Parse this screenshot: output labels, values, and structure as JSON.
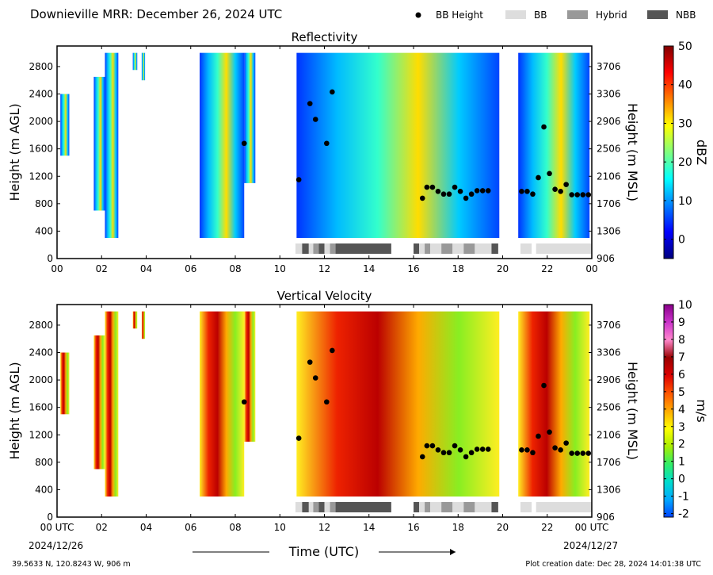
{
  "header": {
    "title": "Downieville MRR:  December 26, 2024 UTC",
    "legend": [
      {
        "label": "BB Height",
        "kind": "dot",
        "color": "#000000"
      },
      {
        "label": "BB",
        "kind": "box",
        "color": "#dddddd"
      },
      {
        "label": "Hybrid",
        "kind": "box",
        "color": "#999999"
      },
      {
        "label": "NBB",
        "kind": "box",
        "color": "#555555"
      }
    ]
  },
  "footer": {
    "location": "39.5633 N, 120.8243 W, 906 m",
    "created": "Plot creation date: Dec 28, 2024 14:01:38 UTC",
    "xlabel": "Time (UTC)",
    "start_date": "2024/12/26",
    "end_date": "2024/12/27"
  },
  "chart_data": [
    {
      "type": "heatmap",
      "title": "Reflectivity",
      "xlabel": "",
      "ylabel": "Height (m AGL)",
      "ylabel_right": "Height (m MSL)",
      "x_ticks": [
        "00",
        "02",
        "04",
        "06",
        "08",
        "10",
        "12",
        "14",
        "16",
        "18",
        "20",
        "22",
        "00"
      ],
      "xlim": [
        0,
        24
      ],
      "ylim": [
        0,
        3100
      ],
      "y_ticks": [
        0,
        400,
        800,
        1200,
        1600,
        2000,
        2400,
        2800
      ],
      "y_right_ticks": [
        "906",
        "1306",
        "1706",
        "2106",
        "2506",
        "2906",
        "3306",
        "3706"
      ],
      "colorbar": {
        "label": "dBZ",
        "range": [
          -5,
          50
        ],
        "ticks": [
          0,
          10,
          20,
          30,
          40,
          50
        ],
        "colormap": [
          "#00007f",
          "#0000ff",
          "#007fff",
          "#00ffff",
          "#7fff7f",
          "#ffff00",
          "#ff7f00",
          "#ff0000",
          "#7f0000"
        ]
      },
      "echo_segments": [
        {
          "start": 0.15,
          "end": 0.55,
          "bottom": 1500,
          "top": 2400
        },
        {
          "start": 1.65,
          "end": 2.15,
          "bottom": 700,
          "top": 2650
        },
        {
          "start": 2.15,
          "end": 2.75,
          "bottom": 300,
          "top": 3000
        },
        {
          "start": 3.4,
          "end": 3.6,
          "bottom": 2750,
          "top": 3000
        },
        {
          "start": 3.8,
          "end": 3.95,
          "bottom": 2600,
          "top": 3000
        },
        {
          "start": 6.4,
          "end": 8.4,
          "bottom": 300,
          "top": 3000
        },
        {
          "start": 8.4,
          "end": 8.9,
          "bottom": 1100,
          "top": 3000
        },
        {
          "start": 10.75,
          "end": 19.85,
          "bottom": 300,
          "top": 3000
        },
        {
          "start": 20.7,
          "end": 23.9,
          "bottom": 300,
          "top": 3000
        }
      ],
      "bb_heights": [
        {
          "time": 10.85,
          "height": 1150
        },
        {
          "time": 11.35,
          "height": 2260
        },
        {
          "time": 11.6,
          "height": 2030
        },
        {
          "time": 12.1,
          "height": 1680
        },
        {
          "time": 12.35,
          "height": 2430
        },
        {
          "time": 8.4,
          "height": 1680
        },
        {
          "time": 16.4,
          "height": 880
        },
        {
          "time": 16.6,
          "height": 1040
        },
        {
          "time": 16.85,
          "height": 1040
        },
        {
          "time": 17.1,
          "height": 980
        },
        {
          "time": 17.35,
          "height": 940
        },
        {
          "time": 17.6,
          "height": 940
        },
        {
          "time": 17.85,
          "height": 1040
        },
        {
          "time": 18.1,
          "height": 980
        },
        {
          "time": 18.35,
          "height": 880
        },
        {
          "time": 18.6,
          "height": 940
        },
        {
          "time": 18.85,
          "height": 990
        },
        {
          "time": 19.1,
          "height": 990
        },
        {
          "time": 19.35,
          "height": 990
        },
        {
          "time": 20.85,
          "height": 980
        },
        {
          "time": 21.1,
          "height": 980
        },
        {
          "time": 21.35,
          "height": 940
        },
        {
          "time": 21.6,
          "height": 1180
        },
        {
          "time": 21.85,
          "height": 1920
        },
        {
          "time": 22.1,
          "height": 1240
        },
        {
          "time": 22.35,
          "height": 1010
        },
        {
          "time": 22.6,
          "height": 980
        },
        {
          "time": 22.85,
          "height": 1080
        },
        {
          "time": 23.1,
          "height": 930
        },
        {
          "time": 23.35,
          "height": 930
        },
        {
          "time": 23.6,
          "height": 930
        },
        {
          "time": 23.85,
          "height": 930
        }
      ],
      "bb_type_bar": [
        {
          "start": 10.7,
          "end": 11.0,
          "type": "BB"
        },
        {
          "start": 11.0,
          "end": 11.3,
          "type": "NBB"
        },
        {
          "start": 11.3,
          "end": 11.5,
          "type": "BB"
        },
        {
          "start": 11.5,
          "end": 11.75,
          "type": "Hybrid"
        },
        {
          "start": 11.75,
          "end": 12.0,
          "type": "NBB"
        },
        {
          "start": 12.0,
          "end": 12.25,
          "type": "BB"
        },
        {
          "start": 12.25,
          "end": 12.5,
          "type": "Hybrid"
        },
        {
          "start": 12.5,
          "end": 15.0,
          "type": "NBB"
        },
        {
          "start": 16.0,
          "end": 16.25,
          "type": "NBB"
        },
        {
          "start": 16.25,
          "end": 16.5,
          "type": "BB"
        },
        {
          "start": 16.5,
          "end": 16.75,
          "type": "Hybrid"
        },
        {
          "start": 16.75,
          "end": 17.25,
          "type": "BB"
        },
        {
          "start": 17.25,
          "end": 17.75,
          "type": "Hybrid"
        },
        {
          "start": 17.75,
          "end": 18.25,
          "type": "BB"
        },
        {
          "start": 18.25,
          "end": 18.75,
          "type": "Hybrid"
        },
        {
          "start": 18.75,
          "end": 19.5,
          "type": "BB"
        },
        {
          "start": 19.5,
          "end": 19.8,
          "type": "NBB"
        },
        {
          "start": 20.8,
          "end": 21.3,
          "type": "BB"
        },
        {
          "start": 21.5,
          "end": 24.0,
          "type": "BB"
        }
      ]
    },
    {
      "type": "heatmap",
      "title": "Vertical Velocity",
      "ylabel": "Height (m AGL)",
      "ylabel_right": "Height (m MSL)",
      "x_ticks": [
        "00 UTC",
        "02",
        "04",
        "06",
        "08",
        "10",
        "12",
        "14",
        "16",
        "18",
        "20",
        "22",
        "00 UTC"
      ],
      "xlim": [
        0,
        24
      ],
      "ylim": [
        0,
        3100
      ],
      "y_ticks": [
        0,
        400,
        800,
        1200,
        1600,
        2000,
        2400,
        2800
      ],
      "y_right_ticks": [
        "906",
        "1306",
        "1706",
        "2106",
        "2506",
        "2906",
        "3306",
        "3706"
      ],
      "colorbar": {
        "label": "m/s",
        "range": [
          -2.2,
          10
        ],
        "ticks": [
          -2,
          -1,
          0,
          1,
          2,
          3,
          4,
          5,
          6,
          7,
          8,
          9,
          10
        ],
        "colormap": [
          "#0044ff",
          "#00aaff",
          "#00ddcc",
          "#33ee66",
          "#aaee00",
          "#ffff00",
          "#ffaa00",
          "#ff5500",
          "#dd0000",
          "#990000",
          "#ff88cc",
          "#cc33cc",
          "#880088"
        ]
      },
      "echo_segments": [
        {
          "start": 0.15,
          "end": 0.55,
          "bottom": 1500,
          "top": 2400
        },
        {
          "start": 1.65,
          "end": 2.15,
          "bottom": 700,
          "top": 2650
        },
        {
          "start": 2.15,
          "end": 2.75,
          "bottom": 300,
          "top": 3000
        },
        {
          "start": 3.4,
          "end": 3.6,
          "bottom": 2750,
          "top": 3000
        },
        {
          "start": 3.8,
          "end": 3.95,
          "bottom": 2600,
          "top": 3000
        },
        {
          "start": 6.4,
          "end": 8.4,
          "bottom": 300,
          "top": 3000
        },
        {
          "start": 8.4,
          "end": 8.9,
          "bottom": 1100,
          "top": 3000
        },
        {
          "start": 10.75,
          "end": 19.85,
          "bottom": 300,
          "top": 3000
        },
        {
          "start": 20.7,
          "end": 23.9,
          "bottom": 300,
          "top": 3000
        }
      ]
    }
  ]
}
